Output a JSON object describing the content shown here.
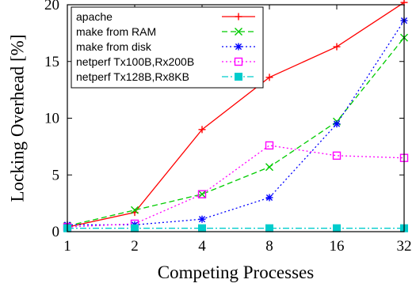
{
  "chart_data": {
    "type": "line",
    "title": "",
    "xlabel": "Competing Processes",
    "ylabel": "Locking Overhead [%]",
    "x_scale": "log2",
    "categories": [
      "1",
      "2",
      "4",
      "8",
      "16",
      "32"
    ],
    "x": [
      1,
      2,
      4,
      8,
      16,
      32
    ],
    "ylim": [
      0,
      20
    ],
    "yticks": [
      "0",
      "5",
      "10",
      "15",
      "20"
    ],
    "grid": false,
    "legend_position": "top-left",
    "series": [
      {
        "name": "apache",
        "color": "#ff0000",
        "marker": "plus",
        "dash": "solid",
        "values": [
          0.4,
          1.7,
          9.0,
          13.6,
          16.3,
          20.2
        ]
      },
      {
        "name": "make from RAM",
        "color": "#00cc00",
        "marker": "x",
        "dash": "dashed",
        "values": [
          0.5,
          1.9,
          3.3,
          5.7,
          9.7,
          17.1
        ]
      },
      {
        "name": "make from disk",
        "color": "#0000ff",
        "marker": "star",
        "dash": "dotted",
        "values": [
          0.6,
          0.6,
          1.1,
          3.0,
          9.5,
          18.6
        ]
      },
      {
        "name": "netperf Tx100B,Rx200B",
        "color": "#ff00ff",
        "marker": "square-open",
        "dash": "dotted",
        "values": [
          0.4,
          0.7,
          3.3,
          7.6,
          6.7,
          6.5
        ]
      },
      {
        "name": "netperf Tx128B,Rx8KB",
        "color": "#00cccc",
        "marker": "square-filled",
        "dash": "dashdot",
        "values": [
          0.3,
          0.3,
          0.3,
          0.3,
          0.3,
          0.3
        ]
      }
    ]
  }
}
